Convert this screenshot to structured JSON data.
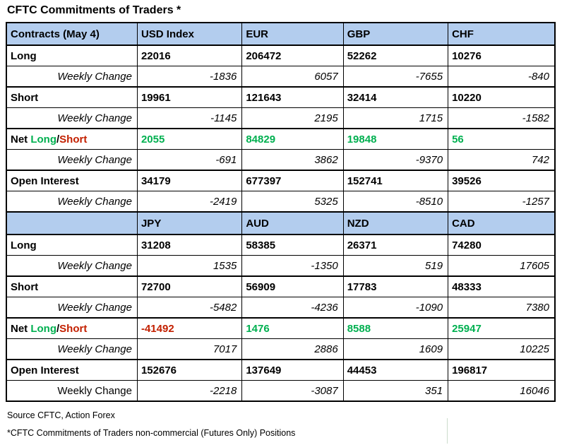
{
  "title": "CFTC Commitments of Traders *",
  "colors": {
    "header_bg": "#b3cdee",
    "pos": "#00b050",
    "neg": "#c32000",
    "border": "#000000"
  },
  "net_label_parts": [
    {
      "text": "Net ",
      "color": "#000000"
    },
    {
      "text": "Long",
      "color": "#00b050"
    },
    {
      "text": "/",
      "color": "#000000"
    },
    {
      "text": "Short",
      "color": "#c32000"
    }
  ],
  "table": {
    "sections": [
      {
        "headers": [
          "Contracts (May 4)",
          "USD Index",
          "EUR",
          "GBP",
          "CHF"
        ],
        "rows": [
          {
            "label": "Long",
            "style": "label",
            "values": [
              "22016",
              "206472",
              "52262",
              "10276"
            ]
          },
          {
            "label": "Weekly Change",
            "style": "weekly",
            "values": [
              "-1836",
              "6057",
              "-7655",
              "-840"
            ]
          },
          {
            "label": "Short",
            "style": "label",
            "values": [
              "19961",
              "121643",
              "32414",
              "10220"
            ]
          },
          {
            "label": "Weekly Change",
            "style": "weekly",
            "values": [
              "-1145",
              "2195",
              "1715",
              "-1582"
            ]
          },
          {
            "label": "Net Long/Short",
            "style": "net",
            "values": [
              "2055",
              "84829",
              "19848",
              "56"
            ],
            "value_colors": [
              "pos",
              "pos",
              "pos",
              "pos"
            ]
          },
          {
            "label": "Weekly Change",
            "style": "weekly",
            "values": [
              "-691",
              "3862",
              "-9370",
              "742"
            ]
          },
          {
            "label": "Open Interest",
            "style": "label",
            "values": [
              "34179",
              "677397",
              "152741",
              "39526"
            ]
          },
          {
            "label": "Weekly Change",
            "style": "weekly",
            "values": [
              "-2419",
              "5325",
              "-8510",
              "-1257"
            ]
          }
        ]
      },
      {
        "headers": [
          "",
          "JPY",
          "AUD",
          "NZD",
          "CAD"
        ],
        "rows": [
          {
            "label": "Long",
            "style": "label",
            "values": [
              "31208",
              "58385",
              "26371",
              "74280"
            ]
          },
          {
            "label": "Weekly Change",
            "style": "weekly",
            "values": [
              "1535",
              "-1350",
              "519",
              "17605"
            ]
          },
          {
            "label": "Short",
            "style": "label",
            "values": [
              "72700",
              "56909",
              "17783",
              "48333"
            ]
          },
          {
            "label": "Weekly Change",
            "style": "weekly",
            "values": [
              "-5482",
              "-4236",
              "-1090",
              "7380"
            ]
          },
          {
            "label": "Net Long/Short",
            "style": "net",
            "values": [
              "-41492",
              "1476",
              "8588",
              "25947"
            ],
            "value_colors": [
              "neg",
              "pos",
              "pos",
              "pos"
            ]
          },
          {
            "label": "Weekly Change",
            "style": "weekly",
            "values": [
              "7017",
              "2886",
              "1609",
              "10225"
            ]
          },
          {
            "label": "Open Interest",
            "style": "label",
            "values": [
              "152676",
              "137649",
              "44453",
              "196817"
            ]
          },
          {
            "label": "Weekly Change",
            "style": "weekly",
            "label_upright": true,
            "values": [
              "-2218",
              "-3087",
              "351",
              "16046"
            ]
          }
        ]
      }
    ]
  },
  "footer": {
    "source": "Source CFTC, Action Forex",
    "note": "*CFTC Commitments of Traders non-commercial (Futures Only) Positions"
  },
  "chart_data": {
    "type": "table",
    "title": "CFTC Commitments of Traders *",
    "sections": [
      {
        "columns": [
          "Contracts (May 4)",
          "USD Index",
          "EUR",
          "GBP",
          "CHF"
        ],
        "rows": [
          [
            "Long",
            22016,
            206472,
            52262,
            10276
          ],
          [
            "Weekly Change",
            -1836,
            6057,
            -7655,
            -840
          ],
          [
            "Short",
            19961,
            121643,
            32414,
            10220
          ],
          [
            "Weekly Change",
            -1145,
            2195,
            1715,
            -1582
          ],
          [
            "Net Long/Short",
            2055,
            84829,
            19848,
            56
          ],
          [
            "Weekly Change",
            -691,
            3862,
            -9370,
            742
          ],
          [
            "Open Interest",
            34179,
            677397,
            152741,
            39526
          ],
          [
            "Weekly Change",
            -2419,
            5325,
            -8510,
            -1257
          ]
        ]
      },
      {
        "columns": [
          "",
          "JPY",
          "AUD",
          "NZD",
          "CAD"
        ],
        "rows": [
          [
            "Long",
            31208,
            58385,
            26371,
            74280
          ],
          [
            "Weekly Change",
            1535,
            -1350,
            519,
            17605
          ],
          [
            "Short",
            72700,
            56909,
            17783,
            48333
          ],
          [
            "Weekly Change",
            -5482,
            -4236,
            -1090,
            7380
          ],
          [
            "Net Long/Short",
            -41492,
            1476,
            8588,
            25947
          ],
          [
            "Weekly Change",
            7017,
            2886,
            1609,
            10225
          ],
          [
            "Open Interest",
            152676,
            137649,
            44453,
            196817
          ],
          [
            "Weekly Change",
            -2218,
            -3087,
            351,
            16046
          ]
        ]
      }
    ],
    "source": "Source CFTC, Action Forex",
    "note": "*CFTC Commitments of Traders non-commercial (Futures Only) Positions"
  }
}
